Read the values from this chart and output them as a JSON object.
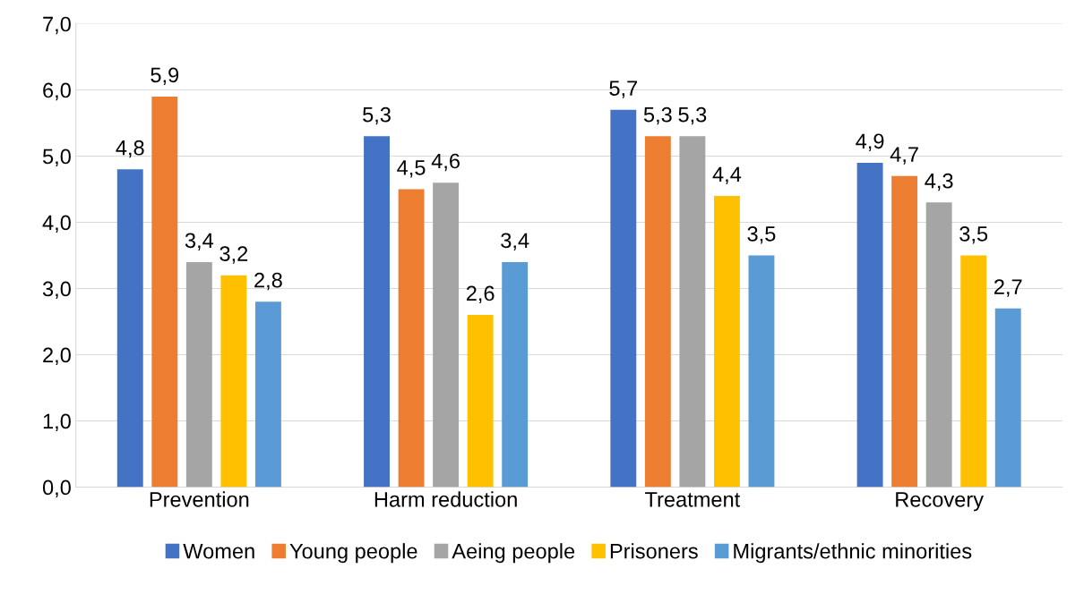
{
  "chart_data": {
    "type": "bar",
    "categories": [
      "Prevention",
      "Harm reduction",
      "Treatment",
      "Recovery"
    ],
    "series": [
      {
        "name": "Women",
        "color": "#4472c4",
        "values": [
          4.8,
          5.3,
          5.7,
          4.9
        ],
        "value_labels": [
          "4,8",
          "5,3",
          "5,7",
          "4,9"
        ]
      },
      {
        "name": "Young people",
        "color": "#ed7d31",
        "values": [
          5.9,
          4.5,
          5.3,
          4.7
        ],
        "value_labels": [
          "5,9",
          "4,5",
          "5,3",
          "4,7"
        ]
      },
      {
        "name": "Aeing people",
        "color": "#a5a5a5",
        "values": [
          3.4,
          4.6,
          5.3,
          4.3
        ],
        "value_labels": [
          "3,4",
          "4,6",
          "5,3",
          "4,3"
        ]
      },
      {
        "name": "Prisoners",
        "color": "#ffc000",
        "values": [
          3.2,
          2.6,
          4.4,
          3.5
        ],
        "value_labels": [
          "3,2",
          "2,6",
          "4,4",
          "3,5"
        ]
      },
      {
        "name": "Migrants/ethnic minorities",
        "color": "#5b9bd5",
        "values": [
          2.8,
          3.4,
          3.5,
          2.7
        ],
        "value_labels": [
          "2,8",
          "3,4",
          "3,5",
          "2,7"
        ]
      }
    ],
    "ylim": [
      0,
      7
    ],
    "yticks": [
      {
        "value": 0,
        "label": "0,0"
      },
      {
        "value": 1,
        "label": "1,0"
      },
      {
        "value": 2,
        "label": "2,0"
      },
      {
        "value": 3,
        "label": "3,0"
      },
      {
        "value": 4,
        "label": "4,0"
      },
      {
        "value": 5,
        "label": "5,0"
      },
      {
        "value": 6,
        "label": "6,0"
      },
      {
        "value": 7,
        "label": "7,0"
      }
    ],
    "grid": "y",
    "legend": "bottom"
  }
}
